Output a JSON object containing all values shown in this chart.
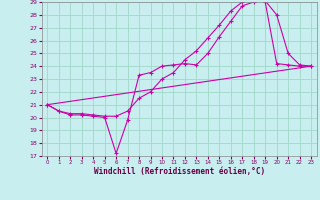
{
  "xlabel": "Windchill (Refroidissement éolien,°C)",
  "background_color": "#c8eef0",
  "grid_color": "#a0d8c8",
  "line_color": "#cc00aa",
  "ylim": [
    17,
    29
  ],
  "xlim": [
    -0.5,
    23.5
  ],
  "yticks": [
    17,
    18,
    19,
    20,
    21,
    22,
    23,
    24,
    25,
    26,
    27,
    28,
    29
  ],
  "xticks": [
    0,
    1,
    2,
    3,
    4,
    5,
    6,
    7,
    8,
    9,
    10,
    11,
    12,
    13,
    14,
    15,
    16,
    17,
    18,
    19,
    20,
    21,
    22,
    23
  ],
  "line1_x": [
    0,
    1,
    2,
    3,
    4,
    5,
    6,
    7,
    8,
    9,
    10,
    11,
    12,
    13,
    14,
    15,
    16,
    17,
    18,
    19,
    20,
    21,
    22,
    23
  ],
  "line1_y": [
    21.0,
    20.5,
    20.2,
    20.2,
    20.1,
    20.0,
    17.2,
    19.8,
    23.3,
    23.5,
    24.0,
    24.1,
    24.2,
    24.1,
    25.0,
    26.3,
    27.5,
    28.7,
    29.0,
    29.1,
    28.0,
    25.0,
    24.1,
    24.0
  ],
  "line2_x": [
    0,
    1,
    2,
    3,
    4,
    5,
    6,
    7,
    8,
    9,
    10,
    11,
    12,
    13,
    14,
    15,
    16,
    17,
    18,
    19,
    20,
    21,
    22,
    23
  ],
  "line2_y": [
    21.0,
    20.5,
    20.3,
    20.3,
    20.2,
    20.1,
    20.1,
    20.5,
    21.5,
    22.0,
    23.0,
    23.5,
    24.5,
    25.2,
    26.2,
    27.2,
    28.3,
    29.0,
    29.2,
    29.0,
    24.2,
    24.1,
    24.0,
    24.0
  ],
  "line3_x": [
    0,
    23
  ],
  "line3_y": [
    21.0,
    24.0
  ]
}
